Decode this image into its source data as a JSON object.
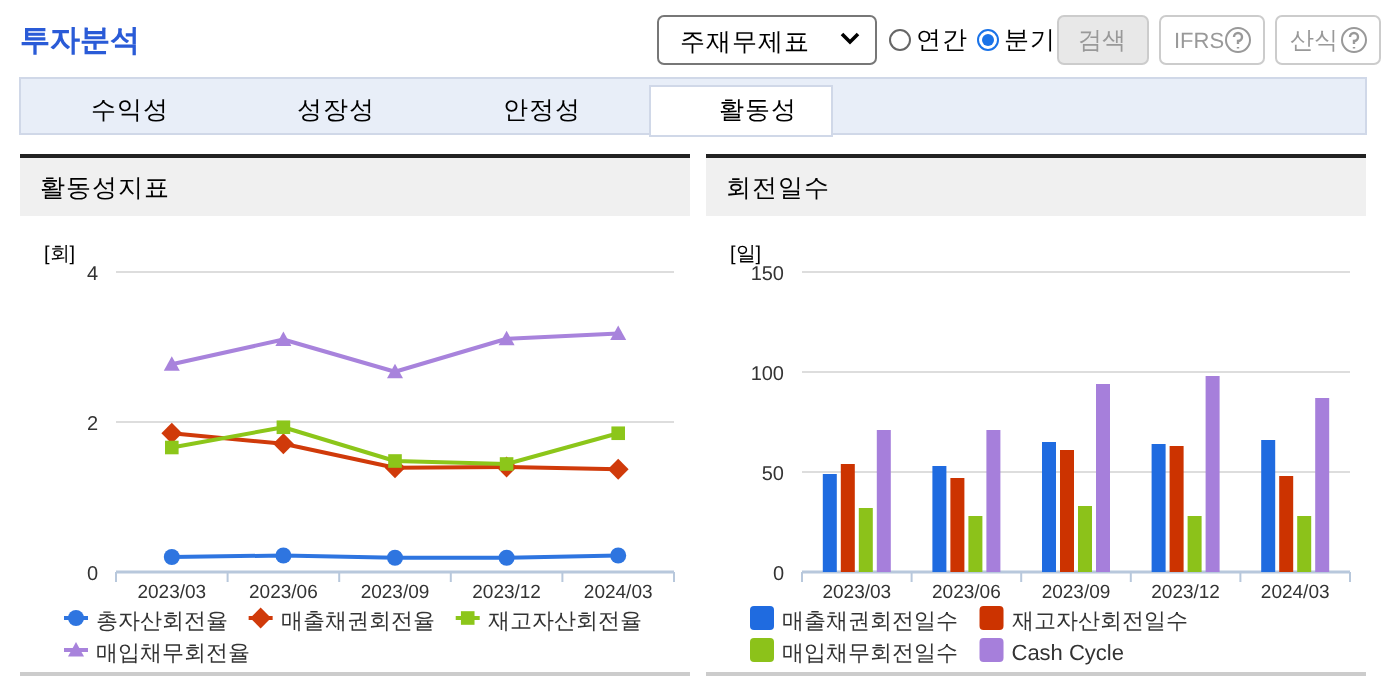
{
  "chart_data": [
    {
      "type": "other",
      "title": "투자분석",
      "annotations": [
        "주재무제표",
        "연간",
        "분기",
        "검색",
        "IFRS",
        "산식",
        "수익성",
        "성장성",
        "안정성",
        "활동성"
      ]
    },
    {
      "type": "line",
      "title": "활동성지표",
      "ylabel": "[회]",
      "categories": [
        "2023/03",
        "2023/06",
        "2023/09",
        "2023/12",
        "2024/03"
      ],
      "ylim": [
        0,
        4
      ],
      "yticks": [
        0,
        2,
        4
      ],
      "grid": "y",
      "legend": "bottom",
      "series": [
        {
          "name": "총자산회전율",
          "color": "#2e75e0",
          "marker": "circle",
          "values": [
            0.2,
            0.22,
            0.19,
            0.19,
            0.22
          ]
        },
        {
          "name": "매출채권회전율",
          "color": "#d03a0a",
          "marker": "diamond",
          "values": [
            1.85,
            1.71,
            1.39,
            1.4,
            1.37
          ]
        },
        {
          "name": "재고자산회전율",
          "color": "#8cc61a",
          "marker": "square",
          "values": [
            1.66,
            1.93,
            1.48,
            1.44,
            1.85
          ]
        },
        {
          "name": "매입채무회전율",
          "color": "#a883dc",
          "marker": "triangle",
          "values": [
            2.77,
            3.1,
            2.67,
            3.11,
            3.18
          ]
        }
      ]
    },
    {
      "type": "bar",
      "title": "회전일수",
      "ylabel": "[일]",
      "categories": [
        "2023/03",
        "2023/06",
        "2023/09",
        "2023/12",
        "2024/03"
      ],
      "ylim": [
        0,
        150
      ],
      "yticks": [
        0,
        50,
        100,
        150
      ],
      "grid": "y",
      "legend": "bottom",
      "series": [
        {
          "name": "매출채권회전일수",
          "color": "#1f6be0",
          "values": [
            49,
            53,
            65,
            64,
            66
          ]
        },
        {
          "name": "재고자산회전일수",
          "color": "#cc3300",
          "values": [
            54,
            47,
            61,
            63,
            48
          ]
        },
        {
          "name": "매입채무회전일수",
          "color": "#8cc21a",
          "values": [
            32,
            28,
            33,
            28,
            28
          ]
        },
        {
          "name": "Cash Cycle",
          "color": "#a67fdb",
          "values": [
            71,
            71,
            94,
            98,
            87
          ]
        }
      ]
    }
  ]
}
